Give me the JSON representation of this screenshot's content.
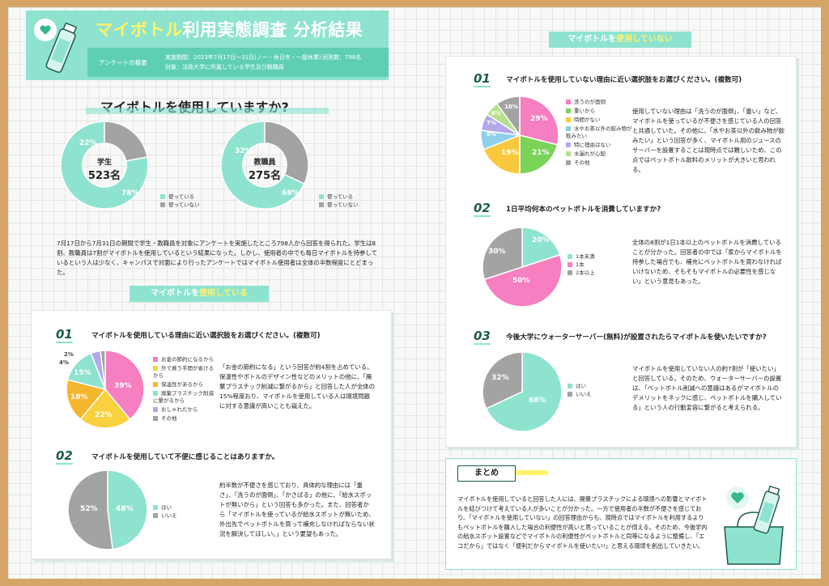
{
  "header": {
    "title_colored": "マイボトル",
    "title_rest": "利用実態調査 分析結果",
    "survey_label": "アンケートの概要",
    "period": "実施期間：2023年7月17日〜31日(ノー・休日冬・一部休業)",
    "target": "対象：法政大学に所属している学生及び教職員",
    "respondents": "回答数：798名"
  },
  "main_question": "マイボトルを使用していますか?",
  "students": {
    "label": "学生",
    "count": "523名",
    "used_pct": "78%",
    "unused_pct": "22%"
  },
  "staff": {
    "label": "教職員",
    "count": "275名",
    "used_pct": "68%",
    "unused_pct": "32%"
  },
  "use_legend": [
    "使っている",
    "使っていない"
  ],
  "intro_text": "7月17日から7月31日の期間で学生・教職員を対象にアンケートを実施したところ798人から回答を得られた。学生は8割、教職員は7割がマイボトルを使用しているという結果になった。しかし、使用者の中でも毎日マイボトルを持参しているという人は少なく、キャンパスで対面により行ったアンケートではマイボトル使用者は全体の半数程度にとどまった。",
  "using": {
    "tag_prefix": "マイボトルを",
    "tag_highlight": "使用している",
    "q1": {
      "num": "01",
      "text": "マイボトルを使用している理由に近い選択肢をお選びください。(複数可)",
      "legend": [
        "お金の節約になるから",
        "外で買う手間が省けるから",
        "保温性があるから",
        "廃棄プラスチック削減に繋がるから",
        "おしゃれだから",
        "その他"
      ],
      "pct_labels": [
        "39%",
        "22%",
        "18%",
        "15%",
        "4%",
        "2%"
      ],
      "desc": "「お金の節約になる」という回答が約4割を占めている。保温性やボトルのデザイン性などのメリットの他に、「廃棄プラスチック削減に繋がるから」と回答した人が全体の15%程度おり、マイボトルを使用している人は環境問題に対する意識が高いことも窺えた。"
    },
    "q2": {
      "num": "02",
      "text": "マイボトルを使用していて不便に感じることはありますか。",
      "legend": [
        "はい",
        "いいえ"
      ],
      "pct_labels": [
        "48%",
        "52%"
      ],
      "desc": "約半数が不便さを感じており、具体的な理由には「重さ」、「洗うのが面倒」、「かさばる」の他に、「給水スポットが無いから」という回答も多かった。また、回答者から「マイボトルを使っているが給水スポットが無いため、外出先でペットボトルを買って補充しなければならない状況を解決してほしい。」という要望もあった。"
    }
  },
  "not_using": {
    "tag_prefix": "マイボトルを",
    "tag_highlight": "使用していない",
    "q1": {
      "num": "01",
      "text": "マイボトルを使用していない理由に近い選択肢をお選びください。(複数可)",
      "legend": [
        "洗うのが面倒",
        "重いから",
        "時間がない",
        "水やお茶以外の飲み物が飲みたい",
        "特に理由はない",
        "水漏れが心配",
        "その他"
      ],
      "pct_labels": [
        "29%",
        "21%",
        "19%",
        "8%",
        "7%",
        "6%",
        "10%"
      ],
      "desc": "使用していない理由は「洗うのが面倒」、「重い」など、マイボトルを使っているが不便さを感じている人の回答と共通していた。その他に、「水やお茶以外の飲み物が飲みたい」という回答が多く、マイボトル用のジュースのサーバーを設置することは現時点では難しいため、この点ではペットボトル飲料のメリットが大きいと思われる。"
    },
    "q2": {
      "num": "02",
      "text": "1日平均何本のペットボトルを消費していますか?",
      "legend": [
        "1本未満",
        "1本",
        "2本以上"
      ],
      "pct_labels": [
        "20%",
        "50%",
        "30%"
      ],
      "desc": "全体の8割が1日1本以上のペットボトルを消費していることが分かった。回答者の中では「家からマイボトルを持参した場合でも、補充にペットボトルを買わなければいけないため、そもそもマイボトルの必要性を感じない」という意見もあった。"
    },
    "q3": {
      "num": "03",
      "text": "今後大学にウォーターサーバー(無料)が設置されたらマイボトルを使いたいですか?",
      "legend": [
        "はい",
        "いいえ"
      ],
      "pct_labels": [
        "68%",
        "32%"
      ],
      "desc": "マイボトルを使用していない人の約7割が「使いたい」と回答している。そのため、ウォーターサーバーの設置は、「ペットボトル削減への意識はあるがマイボトルのデメリットをネックに感じ、ペットボトルを購入している」という人の行動変容に繋がると考えられる。"
    }
  },
  "summary": {
    "title": "まとめ",
    "text": "マイボトルを使用していると回答した人には、廃棄プラスチックによる環境への影響とマイボトルを結びつけて考えている人が多いことが分かった。一方で使用者の半数が不便さを感じており、「マイボトルを使用していない」の回答理由からも、現時点ではマイボトルを利用するよりもペットボトルを購入した場合の利便性が高いと思っていることが伺える。そのため、今後学内の給水スポット設置などでマイボトルの利便性がペットボトルと同等になるように整備し、「エコだから」ではなく「便利だからマイボトルを使いたい!」と思える環境を創出していきたい。"
  },
  "colors": {
    "mint": "#8ee3cf",
    "gray": "#a3a3a3",
    "pink": "#f57fc0",
    "yellow": "#f9c83c",
    "green": "#7bd35a",
    "lavender": "#b4a8ea",
    "blue": "#8fcfe9",
    "dark": "#1c5b4b"
  },
  "chart_data": [
    {
      "type": "pie",
      "series_label": "学生 523名",
      "categories": [
        "使っている",
        "使っていない"
      ],
      "values": [
        78,
        22
      ]
    },
    {
      "type": "pie",
      "series_label": "教職員 275名",
      "categories": [
        "使っている",
        "使っていない"
      ],
      "values": [
        68,
        32
      ]
    },
    {
      "type": "pie",
      "categories": [
        "お金の節約になるから",
        "外で買う手間が省けるから",
        "保温性があるから",
        "廃棄プラスチック削減に繋がるから",
        "おしゃれだから",
        "その他"
      ],
      "values": [
        39,
        22,
        18,
        15,
        4,
        2
      ]
    },
    {
      "type": "pie",
      "categories": [
        "はい",
        "いいえ"
      ],
      "values": [
        48,
        52
      ]
    },
    {
      "type": "pie",
      "categories": [
        "洗うのが面倒",
        "重いから",
        "時間がない",
        "水やお茶以外の飲み物が飲みたい",
        "特に理由はない",
        "水漏れが心配",
        "その他"
      ],
      "values": [
        29,
        21,
        19,
        8,
        7,
        6,
        10
      ]
    },
    {
      "type": "pie",
      "categories": [
        "1本未満",
        "1本",
        "2本以上"
      ],
      "values": [
        20,
        50,
        30
      ]
    },
    {
      "type": "pie",
      "categories": [
        "はい",
        "いいえ"
      ],
      "values": [
        68,
        32
      ]
    }
  ]
}
